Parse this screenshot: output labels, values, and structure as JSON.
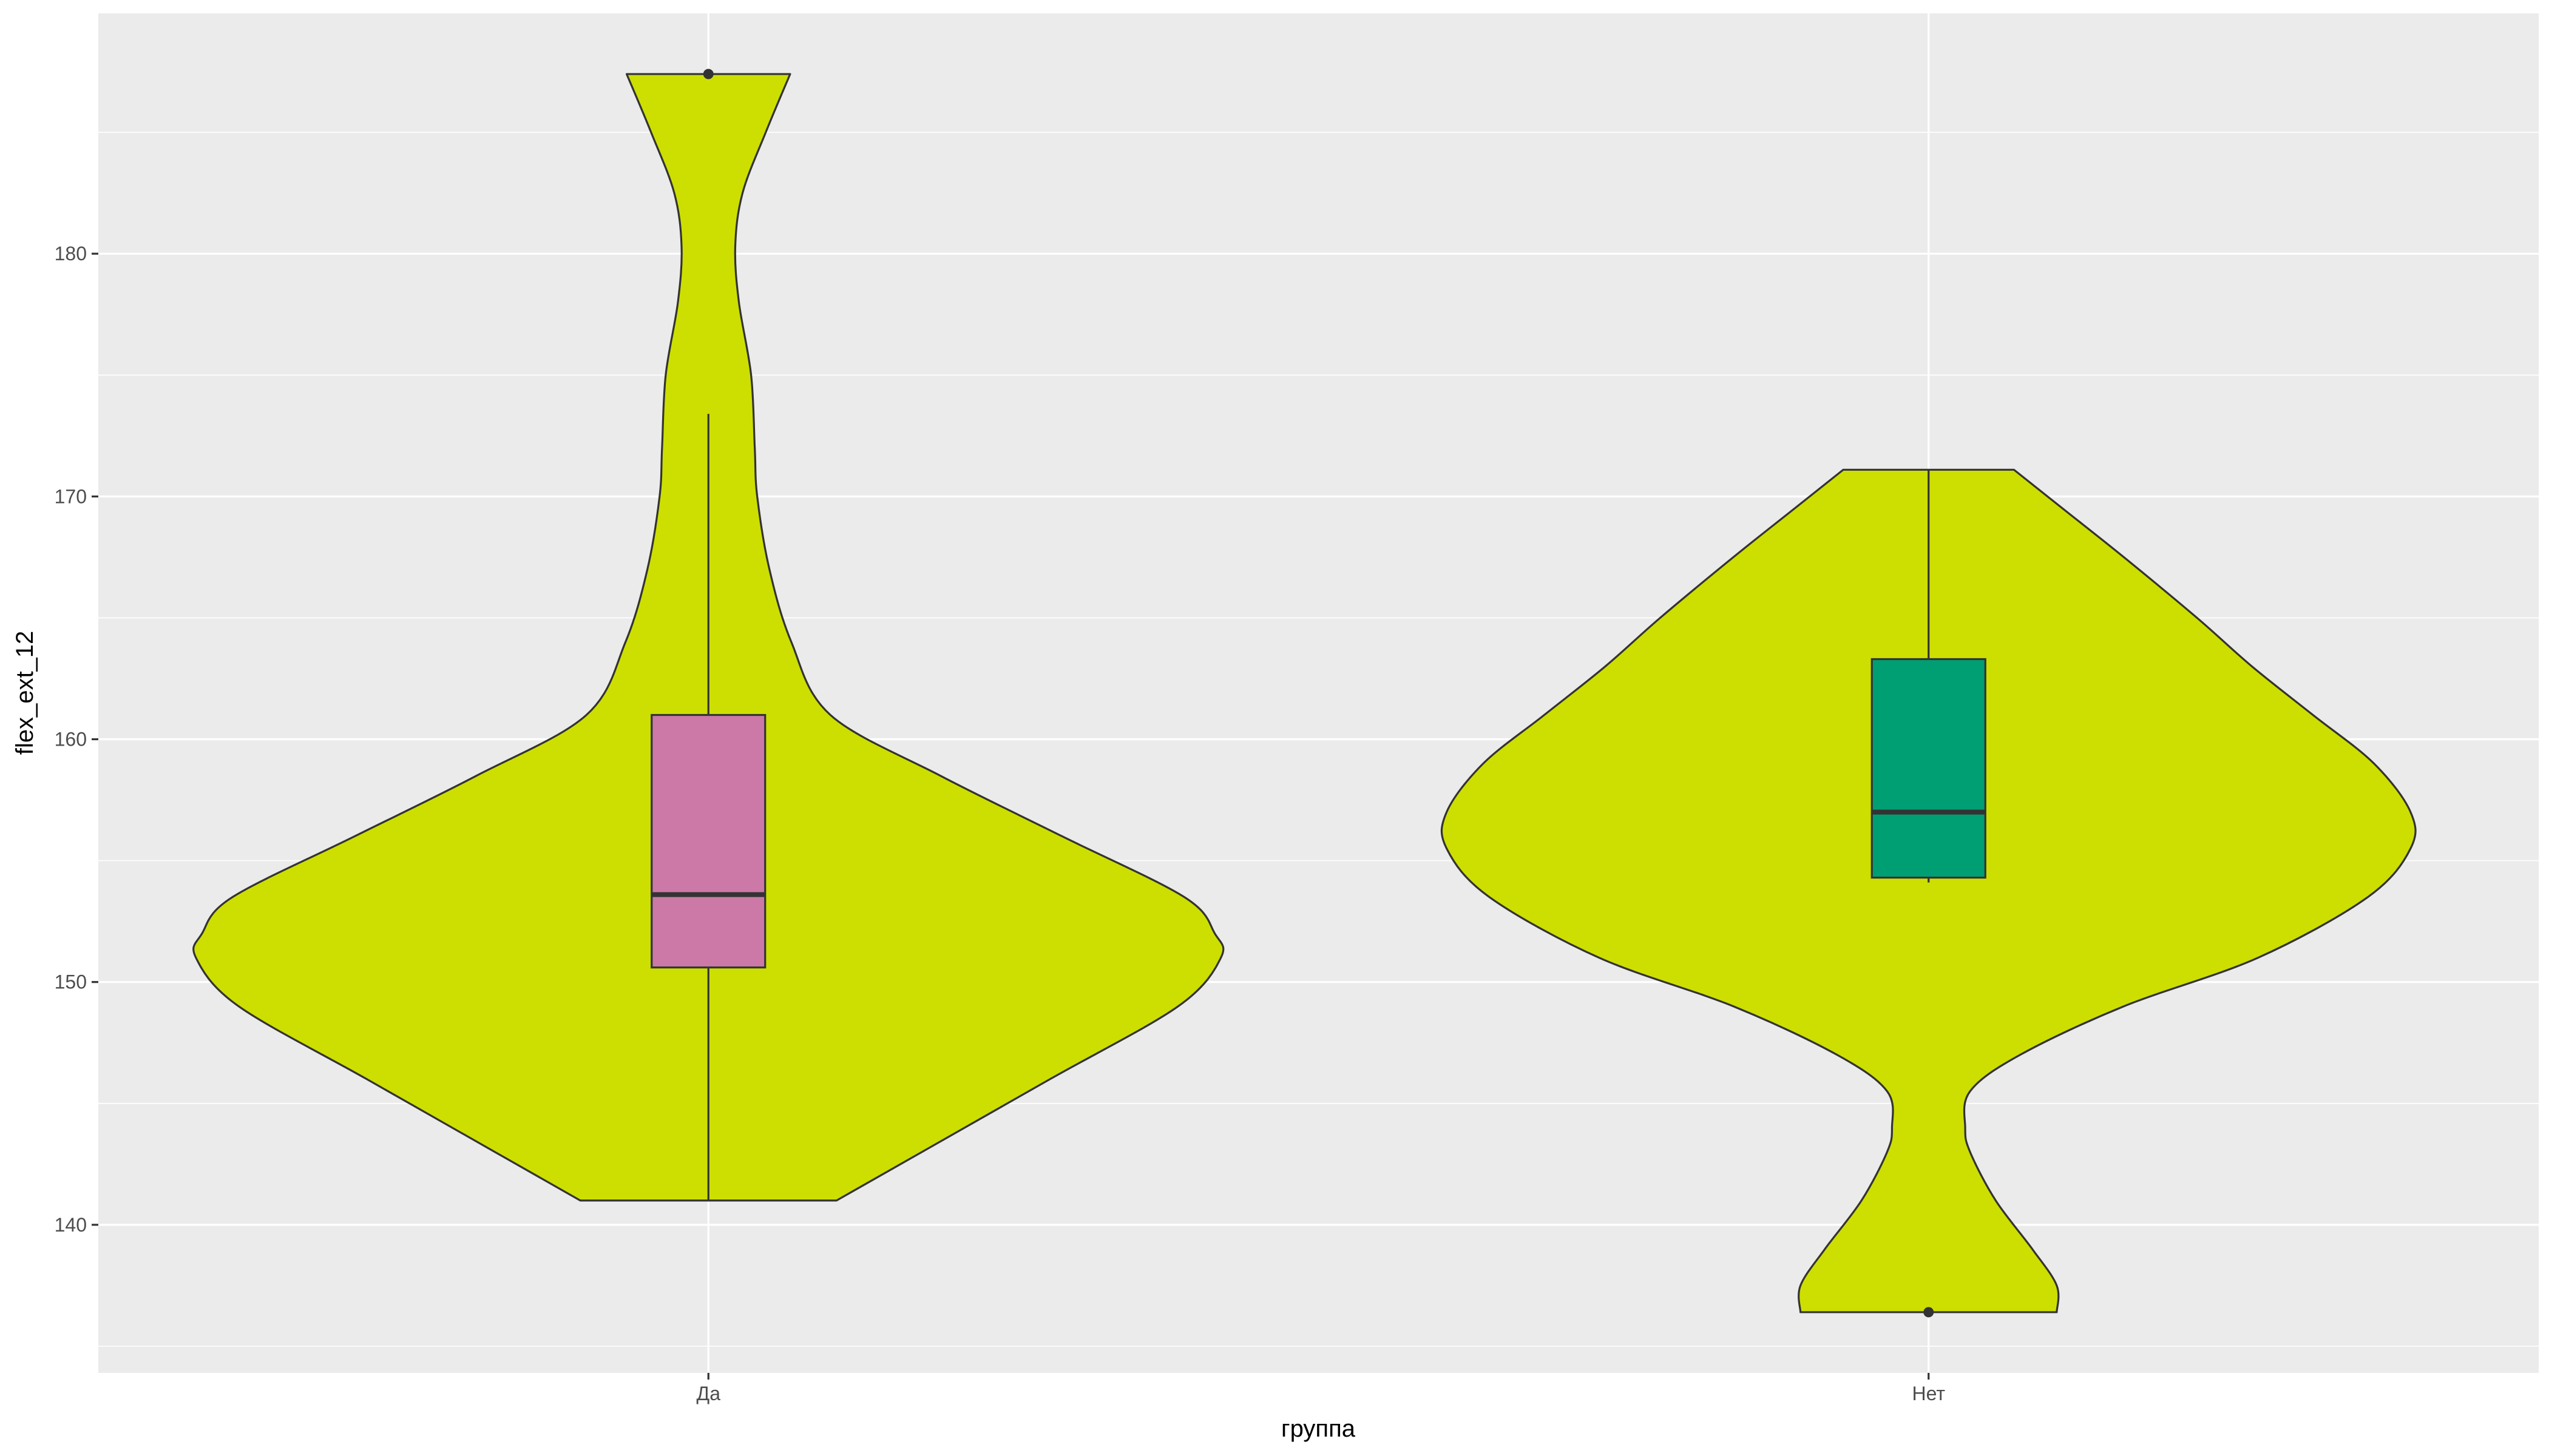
{
  "chart_data": {
    "type": "violin",
    "xlabel": "группа",
    "ylabel": "flex_ext_12",
    "categories": [
      "Да",
      "Нет"
    ],
    "ylim": [
      133.9,
      189.9
    ],
    "yticks": [
      140,
      150,
      160,
      170,
      180
    ],
    "grid": true,
    "legend": "none",
    "colors": {
      "panel": "#EBEBEB",
      "grid": "#FFFFFF",
      "violin_fill": "#CDDF00",
      "outline": "#333333",
      "text": "#4D4D4D"
    },
    "violins": [
      {
        "category": "Да",
        "min": 141.0,
        "max": 187.4,
        "profile": [
          {
            "y": 141.0,
            "w": 0.105
          },
          {
            "y": 143.0,
            "w": 0.175
          },
          {
            "y": 146.0,
            "w": 0.28
          },
          {
            "y": 149.0,
            "w": 0.385
          },
          {
            "y": 151.0,
            "w": 0.42
          },
          {
            "y": 152.0,
            "w": 0.415
          },
          {
            "y": 153.5,
            "w": 0.39
          },
          {
            "y": 156.0,
            "w": 0.29
          },
          {
            "y": 158.5,
            "w": 0.19
          },
          {
            "y": 161.0,
            "w": 0.1
          },
          {
            "y": 164.0,
            "w": 0.068
          },
          {
            "y": 167.0,
            "w": 0.05
          },
          {
            "y": 170.0,
            "w": 0.04
          },
          {
            "y": 172.0,
            "w": 0.038
          },
          {
            "y": 175.0,
            "w": 0.035
          },
          {
            "y": 178.0,
            "w": 0.025
          },
          {
            "y": 180.3,
            "w": 0.022
          },
          {
            "y": 182.5,
            "w": 0.028
          },
          {
            "y": 185.0,
            "w": 0.047
          },
          {
            "y": 187.4,
            "w": 0.067
          }
        ],
        "box": {
          "lower_whisker": 141.0,
          "q1": 150.6,
          "median": 153.6,
          "q3": 161.0,
          "upper_whisker": 173.4,
          "outliers": [
            187.4
          ],
          "fill": "#CC79A7"
        }
      },
      {
        "category": "Нет",
        "min": 136.4,
        "max": 171.1,
        "profile": [
          {
            "y": 136.4,
            "w": 0.105
          },
          {
            "y": 137.5,
            "w": 0.105
          },
          {
            "y": 139.0,
            "w": 0.085
          },
          {
            "y": 141.0,
            "w": 0.055
          },
          {
            "y": 143.0,
            "w": 0.034
          },
          {
            "y": 144.0,
            "w": 0.03
          },
          {
            "y": 145.5,
            "w": 0.034
          },
          {
            "y": 147.0,
            "w": 0.075
          },
          {
            "y": 149.0,
            "w": 0.16
          },
          {
            "y": 151.0,
            "w": 0.27
          },
          {
            "y": 153.5,
            "w": 0.36
          },
          {
            "y": 155.5,
            "w": 0.395
          },
          {
            "y": 157.0,
            "w": 0.395
          },
          {
            "y": 159.0,
            "w": 0.365
          },
          {
            "y": 161.0,
            "w": 0.315
          },
          {
            "y": 163.0,
            "w": 0.265
          },
          {
            "y": 165.0,
            "w": 0.22
          },
          {
            "y": 167.5,
            "w": 0.16
          },
          {
            "y": 169.5,
            "w": 0.11
          },
          {
            "y": 171.1,
            "w": 0.07
          }
        ],
        "box": {
          "lower_whisker": 154.1,
          "q1": 154.3,
          "median": 157.0,
          "q3": 163.3,
          "upper_whisker": 171.1,
          "outliers": [
            136.4
          ],
          "fill": "#009E73"
        }
      }
    ]
  }
}
